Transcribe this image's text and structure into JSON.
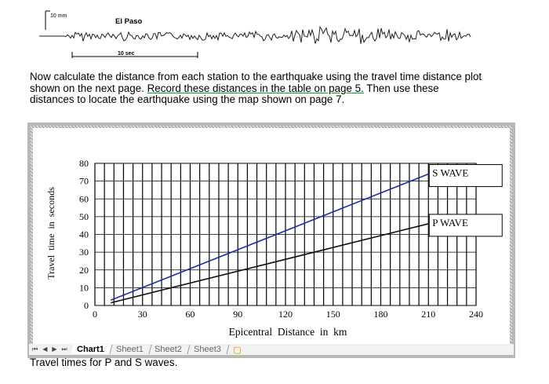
{
  "seismogram": {
    "scale_label": "10 mm",
    "station_label": "El Paso",
    "time_label": "10 sec"
  },
  "instructions": {
    "text_part1": "Now calculate the distance from each station to the earthquake using the travel time distance plot shown on the next page.  ",
    "text_link": "Record these distances in the table on page 5.",
    "text_part2": "  Then use these distances to locate the earthquake using the map shown on page 7."
  },
  "sheet_tabs": {
    "nav_first": "⏮",
    "nav_prev": "◀",
    "nav_next": "▶",
    "nav_last": "⏭",
    "tabs": [
      "Chart1",
      "Sheet1",
      "Sheet2",
      "Sheet3"
    ],
    "active": "Chart1"
  },
  "caption": "Travel times for P and S waves.",
  "chart_data": {
    "type": "line",
    "title": "",
    "xlabel": "Epicentral  Distance  in  km",
    "ylabel": "Travel  time  in  seconds",
    "xlim": [
      0,
      240
    ],
    "ylim": [
      0,
      80
    ],
    "x_ticks": [
      0,
      30,
      60,
      90,
      120,
      150,
      180,
      210,
      240
    ],
    "y_ticks": [
      0,
      10,
      20,
      30,
      40,
      50,
      60,
      70,
      80
    ],
    "grid": {
      "vertical_step": 6,
      "horizontal_step": 10
    },
    "series": [
      {
        "name": "S WAVE",
        "color": "#1f2f9a",
        "x": [
          10,
          210
        ],
        "y": [
          3,
          74
        ]
      },
      {
        "name": "P WAVE",
        "color": "#111111",
        "x": [
          10,
          210
        ],
        "y": [
          1.5,
          46
        ]
      }
    ]
  }
}
